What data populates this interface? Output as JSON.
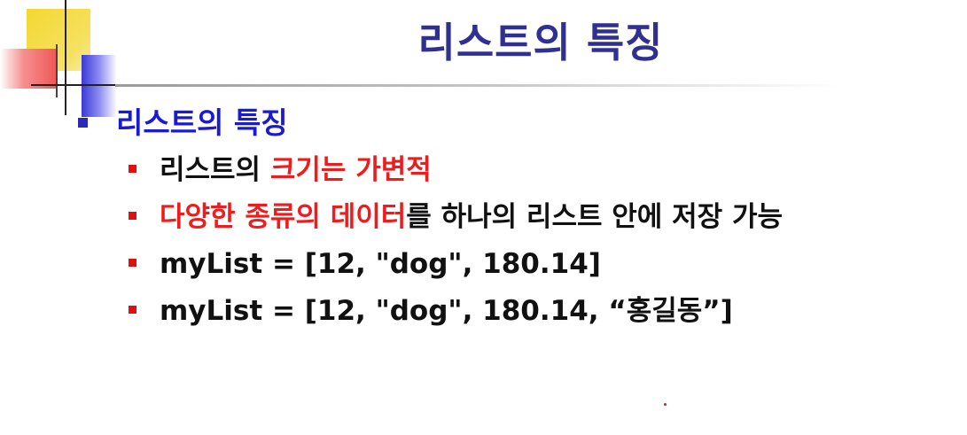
{
  "slide": {
    "title": "리스트의 특징",
    "level1": "리스트의 특징",
    "items": [
      {
        "parts": [
          "리스트의 ",
          "크기는 가변적"
        ]
      },
      {
        "parts": [
          "다양한 종류의 데이터",
          "를 하나의 리스트 안에 저장 가능"
        ]
      },
      {
        "parts": [
          "myList = [12, \"dog\", 180.14]"
        ]
      },
      {
        "parts": [
          "myList = [12, \"dog\", 180.14, “홍길동”]"
        ]
      }
    ]
  },
  "colors": {
    "title": "#303092",
    "level1": "#1a1ad0",
    "emphasis": "#ee1c1c",
    "bullet1": "#2a2ab8",
    "bullet2": "#e01010"
  }
}
